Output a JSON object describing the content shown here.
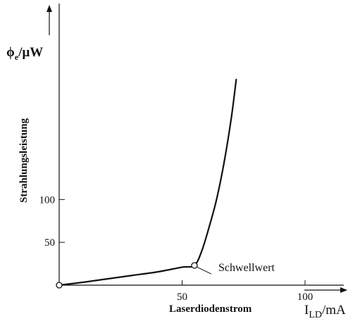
{
  "chart_data": {
    "type": "line",
    "x": [
      0,
      10,
      20,
      30,
      40,
      50,
      55,
      58,
      61,
      64,
      67,
      70,
      72
    ],
    "y": [
      0,
      3.5,
      7.5,
      11.5,
      15.5,
      21,
      23,
      40,
      68,
      100,
      142,
      195,
      240
    ],
    "xlim": [
      0,
      100
    ],
    "ylim": [
      0,
      240
    ],
    "xticks": [
      0,
      50,
      100
    ],
    "xtick_labels": [
      "",
      "50",
      "100"
    ],
    "yticks": [
      0,
      50,
      100
    ],
    "ytick_labels": [
      "",
      "50",
      "100"
    ],
    "xlabel": "Laserdiodenstrom",
    "xunit_main": "I",
    "xunit_sub": "LD",
    "xunit_rest": "/mA",
    "ylabel": "Strahlungsleistung",
    "yunit_main": "ϕ",
    "yunit_sub": "e",
    "yunit_rest": "/μW",
    "annotation": {
      "label": "Schwellwert",
      "x": 55,
      "y": 23
    },
    "origin_marker": {
      "x": 0,
      "y": 0
    },
    "grid": false,
    "colors": {
      "line": "#111111",
      "background": "#ffffff"
    }
  }
}
